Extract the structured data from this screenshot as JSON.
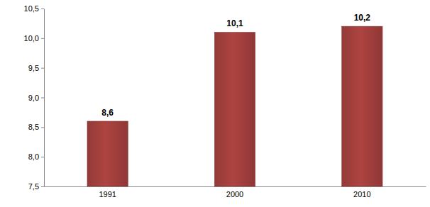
{
  "chart_data": {
    "type": "bar",
    "categories": [
      "1991",
      "2000",
      "2010"
    ],
    "values": [
      8.6,
      10.1,
      10.2
    ],
    "value_labels": [
      "8,6",
      "10,1",
      "10,2"
    ],
    "data_labels": true,
    "color": "#a5403e",
    "ylim": [
      7.5,
      10.5
    ],
    "yticks": [
      {
        "value": 7.5,
        "label": "7,5"
      },
      {
        "value": 8.0,
        "label": "8,0"
      },
      {
        "value": 8.5,
        "label": "8,5"
      },
      {
        "value": 9.0,
        "label": "9,0"
      },
      {
        "value": 9.5,
        "label": "9,5"
      },
      {
        "value": 10.0,
        "label": "10,0"
      },
      {
        "value": 10.5,
        "label": "10,5"
      }
    ],
    "grid": false
  }
}
